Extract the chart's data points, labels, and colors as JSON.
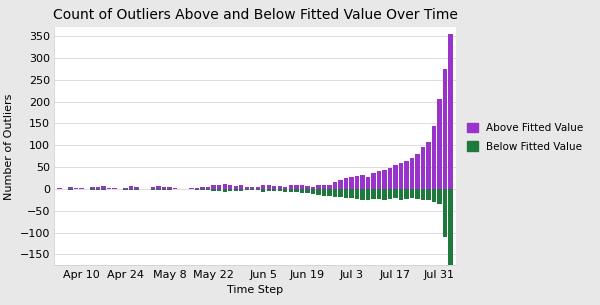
{
  "title": "Count of Outliers Above and Below Fitted Value Over Time",
  "xlabel": "Time Step",
  "ylabel": "Number of Outliers",
  "bar_color_above": "#9933CC",
  "bar_color_below": "#1E7A3C",
  "background_color": "#E8E8E8",
  "plot_background": "#FFFFFF",
  "ylim": [
    -175,
    370
  ],
  "yticks": [
    -150,
    -100,
    -50,
    0,
    50,
    100,
    150,
    200,
    250,
    300,
    350
  ],
  "xtick_labels": [
    "Apr 10",
    "Apr 24",
    "May 8",
    "May 22",
    "Jun 5",
    "Jun 19",
    "Jul 3",
    "Jul 17",
    "Jul 31"
  ],
  "above_values": [
    2,
    1,
    4,
    3,
    2,
    1,
    4,
    4,
    6,
    2,
    2,
    1,
    3,
    7,
    4,
    1,
    1,
    4,
    7,
    5,
    4,
    2,
    1,
    1,
    2,
    2,
    4,
    5,
    8,
    10,
    12,
    9,
    7,
    8,
    5,
    4,
    5,
    10,
    8,
    7,
    6,
    5,
    8,
    10,
    9,
    6,
    5,
    8,
    10,
    8,
    15,
    20,
    25,
    28,
    30,
    32,
    28,
    36,
    40,
    44,
    48,
    54,
    60,
    64,
    70,
    80,
    95,
    108,
    145,
    205,
    275,
    355
  ],
  "below_values": [
    -1,
    0,
    -2,
    -1,
    -1,
    0,
    -2,
    -2,
    -3,
    -1,
    -1,
    0,
    -2,
    -3,
    -2,
    -1,
    0,
    -2,
    -3,
    -2,
    -2,
    -1,
    -1,
    0,
    -1,
    -2,
    -2,
    -3,
    -4,
    -5,
    -6,
    -5,
    -4,
    -5,
    -3,
    -2,
    -3,
    -6,
    -5,
    -4,
    -5,
    -6,
    -7,
    -8,
    -10,
    -9,
    -12,
    -14,
    -15,
    -16,
    -18,
    -18,
    -20,
    -20,
    -22,
    -25,
    -25,
    -22,
    -22,
    -25,
    -22,
    -20,
    -25,
    -22,
    -20,
    -22,
    -25,
    -25,
    -30,
    -35,
    -110,
    -180
  ],
  "n_bars": 72,
  "legend_labels": [
    "Above Fitted Value",
    "Below Fitted Value"
  ],
  "grid_color": "#D8D8D8",
  "title_fontsize": 10,
  "axis_fontsize": 8,
  "tick_fontsize": 8
}
